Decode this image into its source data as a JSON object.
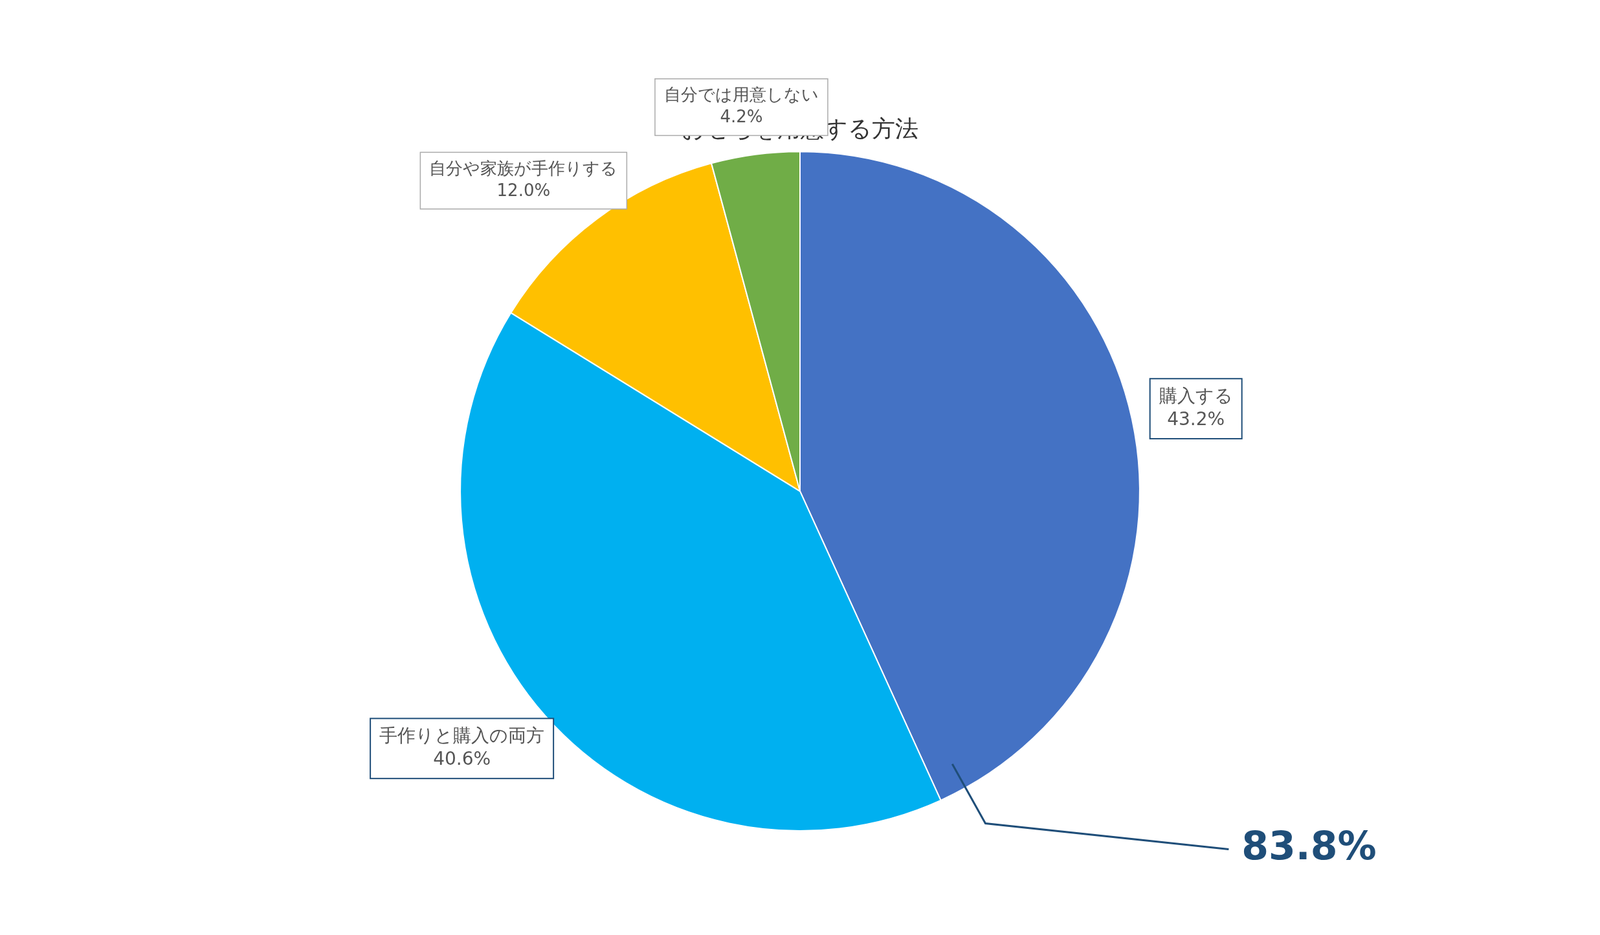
{
  "chart_data": {
    "type": "pie",
    "title": "おせちを用意する方法",
    "categories": [
      "購入する",
      "手作りと購入の両方",
      "自分や家族が手作りする",
      "自分では用意しない"
    ],
    "values": [
      43.2,
      40.6,
      12.0,
      4.2
    ],
    "value_labels": [
      "43.2%",
      "40.6%",
      "12.0%",
      "4.2%"
    ],
    "colors": [
      "#4472C4",
      "#00B0F0",
      "#FFC000",
      "#70AD47"
    ],
    "data_labels": true,
    "legend": false,
    "annotations": [
      {
        "text": "83.8%",
        "color": "#1F4E79"
      }
    ]
  }
}
